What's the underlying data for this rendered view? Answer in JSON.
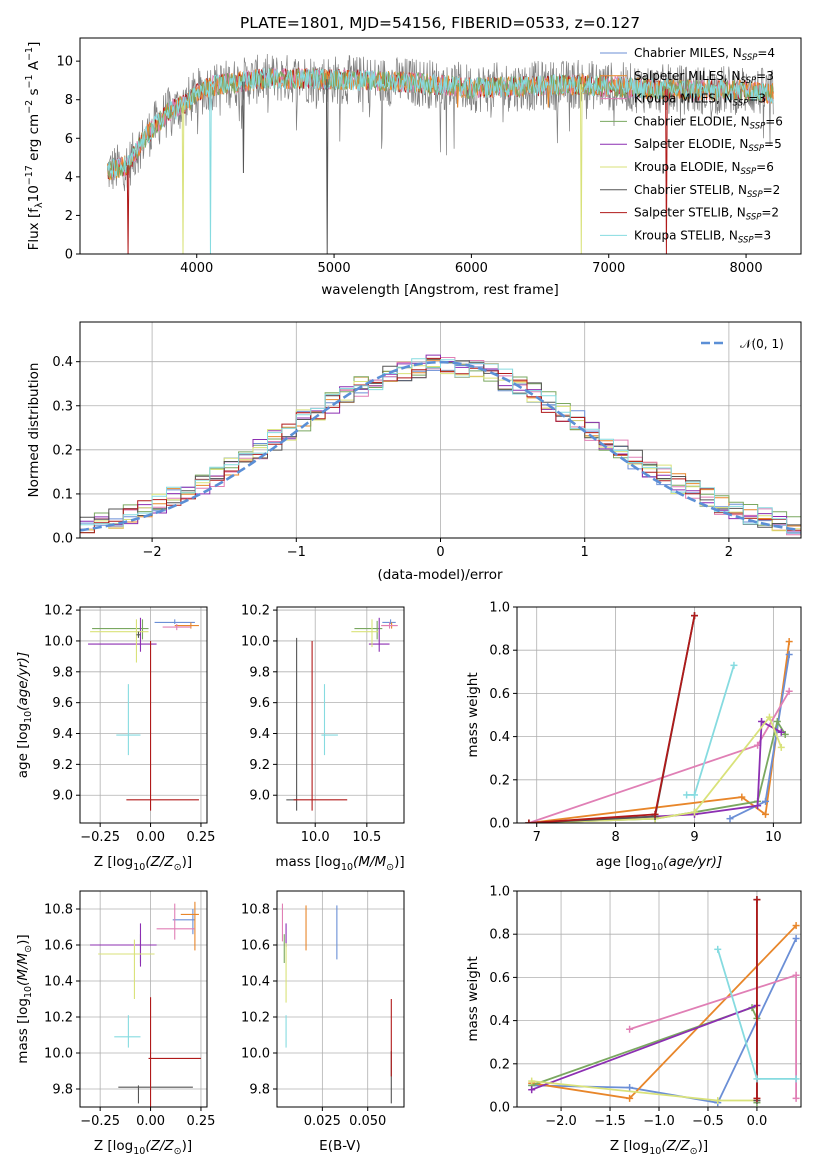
{
  "colors": {
    "Chabrier MILES": "#6b8fd6",
    "Salpeter MILES": "#e8862a",
    "Kroupa MILES": "#e07fb5",
    "Chabrier ELODIE": "#7aa860",
    "Salpeter ELODIE": "#8c2fb2",
    "Kroupa ELODIE": "#d9e27a",
    "Chabrier STELIB": "#555555",
    "Salpeter STELIB": "#b01a1a",
    "Kroupa STELIB": "#86dbe0"
  },
  "chart_data": [
    {
      "id": "spectrum",
      "type": "line",
      "title": "PLATE=1801, MJD=54156, FIBERID=0533, z=0.127",
      "xlabel": "wavelength [Angstrom, rest frame]",
      "ylabel_parts": [
        "Flux [f",
        "λ",
        "10",
        "−17",
        " erg cm",
        "−2",
        " s",
        "−1",
        " A",
        "−1",
        "]"
      ],
      "xlim": [
        3150,
        8400
      ],
      "ylim": [
        0,
        11.2
      ],
      "xticks": [
        4000,
        5000,
        6000,
        7000,
        8000
      ],
      "yticks": [
        0,
        2,
        4,
        6,
        8,
        10
      ],
      "legend_loc": "right",
      "legend": [
        {
          "name": "Chabrier MILES, N",
          "sub": "SSP",
          "post": "=4",
          "color": "#6b8fd6"
        },
        {
          "name": "Salpeter MILES, N",
          "sub": "SSP",
          "post": "=3",
          "color": "#e8862a"
        },
        {
          "name": "Kroupa MILES, N",
          "sub": "SSP",
          "post": "=3",
          "color": "#e07fb5"
        },
        {
          "name": "Chabrier ELODIE, N",
          "sub": "SSP",
          "post": "=6",
          "color": "#7aa860"
        },
        {
          "name": "Salpeter ELODIE, N",
          "sub": "SSP",
          "post": "=5",
          "color": "#8c2fb2"
        },
        {
          "name": "Kroupa ELODIE, N",
          "sub": "SSP",
          "post": "=6",
          "color": "#d9e27a"
        },
        {
          "name": "Chabrier STELIB, N",
          "sub": "SSP",
          "post": "=2",
          "color": "#555555"
        },
        {
          "name": "Salpeter STELIB, N",
          "sub": "SSP",
          "post": "=2",
          "color": "#b01a1a"
        },
        {
          "name": "Kroupa STELIB, N",
          "sub": "SSP",
          "post": "=3",
          "color": "#86dbe0"
        }
      ],
      "continuum_x": [
        3350,
        3500,
        3600,
        3700,
        3800,
        3900,
        4000,
        4100,
        4300,
        4500,
        4800,
        5200,
        5600,
        6000,
        6400,
        6800,
        7200,
        7600,
        8000,
        8200
      ],
      "continuum_y": [
        4.3,
        4.6,
        5.8,
        6.7,
        7.4,
        7.7,
        8.3,
        8.7,
        8.9,
        9.1,
        9.1,
        9.0,
        8.9,
        8.6,
        8.7,
        8.8,
        8.6,
        8.5,
        8.5,
        8.3
      ],
      "dips": [
        {
          "x": 3500,
          "y": 0,
          "color": "#b01a1a"
        },
        {
          "x": 3900,
          "y": 0,
          "color": "#d9e27a"
        },
        {
          "x": 4100,
          "y": 0,
          "color": "#86dbe0"
        },
        {
          "x": 4340,
          "y": 4.2,
          "color": "#555555"
        },
        {
          "x": 4950,
          "y": 0,
          "color": "#555555"
        },
        {
          "x": 5900,
          "y": 7.6,
          "color": "#e8862a"
        },
        {
          "x": 6560,
          "y": 7.6,
          "color": "#e8862a"
        },
        {
          "x": 6800,
          "y": 0,
          "color": "#d9e27a"
        },
        {
          "x": 7420,
          "y": 0,
          "color": "#b01a1a"
        }
      ]
    },
    {
      "id": "residuals",
      "type": "line",
      "xlabel": "(data-model)/error",
      "ylabel": "Normed distribution",
      "xlim": [
        -2.5,
        2.5
      ],
      "ylim": [
        0,
        0.49
      ],
      "xticks": [
        -2,
        -1,
        0,
        1,
        2
      ],
      "yticks": [
        0.0,
        0.1,
        0.2,
        0.3,
        0.4
      ],
      "legend_loc": "upper right",
      "legend": {
        "label": "𝒩(0, 1)",
        "color": "#5b8fd6"
      },
      "bin_width": 0.1
    },
    {
      "id": "age_vs_Z",
      "type": "scatter",
      "xlabel_parts": [
        "Z [log",
        "10",
        "(Z/Z",
        "⊙",
        ")]"
      ],
      "ylabel_parts": [
        "age  [log",
        "10",
        "(age/yr)]"
      ],
      "xlim": [
        -0.35,
        0.28
      ],
      "ylim": [
        8.82,
        10.22
      ],
      "xticks": [
        -0.25,
        0.0,
        0.25
      ],
      "yticks": [
        9.0,
        9.2,
        9.4,
        9.6,
        9.8,
        10.0,
        10.2
      ],
      "points": [
        {
          "x": 0.12,
          "y": 10.12,
          "xerr": [
            0.1,
            0.1
          ],
          "yerr": [
            0.01,
            0.02
          ],
          "color": "#6b8fd6"
        },
        {
          "x": 0.2,
          "y": 10.1,
          "xerr": [
            0.08,
            0.04
          ],
          "yerr": [
            0.02,
            0.02
          ],
          "color": "#e8862a"
        },
        {
          "x": 0.13,
          "y": 10.09,
          "xerr": [
            0.07,
            0.07
          ],
          "yerr": [
            0.02,
            0.02
          ],
          "color": "#e07fb5"
        },
        {
          "x": -0.04,
          "y": 10.08,
          "xerr": [
            0.25,
            0.03
          ],
          "yerr": [
            0.07,
            0.06
          ],
          "color": "#7aa860"
        },
        {
          "x": -0.05,
          "y": 9.98,
          "xerr": [
            0.26,
            0.08
          ],
          "yerr": [
            0.05,
            0.17
          ],
          "color": "#8c2fb2"
        },
        {
          "x": -0.07,
          "y": 10.06,
          "xerr": [
            0.23,
            0.06
          ],
          "yerr": [
            0.2,
            0.08
          ],
          "color": "#d9e27a"
        },
        {
          "x": -0.06,
          "y": 10.04,
          "xerr": [
            0.01,
            0.01
          ],
          "yerr": [
            0.02,
            0.02
          ],
          "color": "#555555"
        },
        {
          "x": -0.11,
          "y": 9.39,
          "xerr": [
            0.06,
            0.06
          ],
          "yerr": [
            0.13,
            0.33
          ],
          "color": "#86dbe0"
        },
        {
          "x": 0.0,
          "y": 8.97,
          "xerr": [
            0.12,
            0.24
          ],
          "yerr": [
            0.07,
            1.03
          ],
          "color": "#b01a1a"
        }
      ]
    },
    {
      "id": "age_vs_mass",
      "type": "scatter",
      "xlabel_parts": [
        "mass [log",
        "10",
        "(M/M",
        "⊙",
        ")]"
      ],
      "xlim": [
        9.63,
        10.86
      ],
      "ylim": [
        8.82,
        10.22
      ],
      "xticks": [
        10.0,
        10.5
      ],
      "yticks": [
        9.0,
        9.2,
        9.4,
        9.6,
        9.8,
        10.0,
        10.2
      ],
      "points": [
        {
          "x": 10.73,
          "y": 10.12,
          "xerr": [
            0.08,
            0.05
          ],
          "yerr": [
            0.01,
            0.02
          ],
          "color": "#6b8fd6"
        },
        {
          "x": 10.74,
          "y": 10.1,
          "xerr": [
            0.1,
            0.05
          ],
          "yerr": [
            0.02,
            0.02
          ],
          "color": "#e8862a"
        },
        {
          "x": 10.72,
          "y": 10.1,
          "xerr": [
            0.08,
            0.08
          ],
          "yerr": [
            0.02,
            0.02
          ],
          "color": "#e07fb5"
        },
        {
          "x": 10.6,
          "y": 10.08,
          "xerr": [
            0.22,
            0.05
          ],
          "yerr": [
            0.07,
            0.05
          ],
          "color": "#7aa860"
        },
        {
          "x": 10.62,
          "y": 9.98,
          "xerr": [
            0.1,
            0.1
          ],
          "yerr": [
            0.05,
            0.17
          ],
          "color": "#8c2fb2"
        },
        {
          "x": 10.55,
          "y": 10.06,
          "xerr": [
            0.2,
            0.06
          ],
          "yerr": [
            0.1,
            0.08
          ],
          "color": "#d9e27a"
        },
        {
          "x": 9.82,
          "y": 8.97,
          "xerr": [
            0.1,
            0.0
          ],
          "yerr": [
            0.07,
            1.05
          ],
          "color": "#555555"
        },
        {
          "x": 10.09,
          "y": 9.39,
          "xerr": [
            0.03,
            0.13
          ],
          "yerr": [
            0.13,
            0.33
          ],
          "color": "#86dbe0"
        },
        {
          "x": 9.97,
          "y": 8.97,
          "xerr": [
            0.18,
            0.34
          ],
          "yerr": [
            0.07,
            1.03
          ],
          "color": "#b01a1a"
        }
      ]
    },
    {
      "id": "weight_vs_age",
      "type": "line",
      "xlabel_parts": [
        "age  [log",
        "10",
        "(age/yr)]"
      ],
      "ylabel": "mass weight",
      "xlim": [
        6.75,
        10.35
      ],
      "ylim": [
        0,
        1.0
      ],
      "xticks": [
        7,
        8,
        9,
        10
      ],
      "yticks": [
        0.0,
        0.2,
        0.4,
        0.6,
        0.8,
        1.0
      ],
      "series": [
        {
          "color": "#e8862a",
          "x": [
            6.9,
            9.6,
            9.9,
            10.2
          ],
          "y": [
            0.0,
            0.12,
            0.04,
            0.84
          ]
        },
        {
          "color": "#6b8fd6",
          "x": [
            9.45,
            9.9,
            10.2
          ],
          "y": [
            0.02,
            0.1,
            0.78
          ]
        },
        {
          "color": "#e07fb5",
          "x": [
            6.9,
            9.8,
            10.2
          ],
          "y": [
            0.0,
            0.36,
            0.61
          ]
        },
        {
          "color": "#7aa860",
          "x": [
            6.9,
            8.5,
            9.0,
            9.8,
            10.05,
            10.15
          ],
          "y": [
            0.0,
            0.02,
            0.05,
            0.1,
            0.47,
            0.41
          ]
        },
        {
          "color": "#8c2fb2",
          "x": [
            6.9,
            8.5,
            9.0,
            9.8,
            9.85,
            10.1
          ],
          "y": [
            0.0,
            0.03,
            0.04,
            0.08,
            0.47,
            0.42
          ]
        },
        {
          "color": "#d9e27a",
          "x": [
            6.9,
            8.5,
            9.0,
            9.95,
            10.1
          ],
          "y": [
            0.0,
            0.02,
            0.05,
            0.49,
            0.35
          ]
        },
        {
          "color": "#555555",
          "x": [
            6.9,
            8.5,
            9.0
          ],
          "y": [
            0.0,
            0.03,
            0.96
          ]
        },
        {
          "color": "#b01a1a",
          "x": [
            6.9,
            8.5,
            9.0
          ],
          "y": [
            0.0,
            0.04,
            0.96
          ]
        },
        {
          "color": "#86dbe0",
          "x": [
            8.9,
            9.0,
            9.5
          ],
          "y": [
            0.13,
            0.13,
            0.73
          ]
        }
      ]
    },
    {
      "id": "mass_vs_Z",
      "type": "scatter",
      "xlabel_parts": [
        "Z [log",
        "10",
        "(Z/Z",
        "⊙",
        ")]"
      ],
      "ylabel_parts": [
        "mass [log",
        "10",
        "(M/M",
        "⊙",
        ")]"
      ],
      "xlim": [
        -0.35,
        0.28
      ],
      "ylim": [
        9.7,
        10.9
      ],
      "xticks": [
        -0.25,
        0.0,
        0.25
      ],
      "yticks": [
        9.8,
        10.0,
        10.2,
        10.4,
        10.6,
        10.8
      ],
      "points": [
        {
          "x": 0.21,
          "y": 10.74,
          "xerr": [
            0.1,
            0.01
          ],
          "yerr": [
            0.08,
            0.06
          ],
          "color": "#6b8fd6"
        },
        {
          "x": 0.22,
          "y": 10.77,
          "xerr": [
            0.07,
            0.02
          ],
          "yerr": [
            0.2,
            0.07
          ],
          "color": "#e8862a"
        },
        {
          "x": 0.12,
          "y": 10.69,
          "xerr": [
            0.09,
            0.1
          ],
          "yerr": [
            0.06,
            0.14
          ],
          "color": "#e07fb5"
        },
        {
          "x": -0.05,
          "y": 10.6,
          "xerr": [
            0.25,
            0.05
          ],
          "yerr": [
            0.1,
            0.06
          ],
          "color": "#7aa860"
        },
        {
          "x": -0.05,
          "y": 10.6,
          "xerr": [
            0.25,
            0.08
          ],
          "yerr": [
            0.12,
            0.12
          ],
          "color": "#8c2fb2"
        },
        {
          "x": -0.08,
          "y": 10.55,
          "xerr": [
            0.18,
            0.1
          ],
          "yerr": [
            0.25,
            0.08
          ],
          "color": "#d9e27a"
        },
        {
          "x": -0.06,
          "y": 9.81,
          "xerr": [
            0.1,
            0.27
          ],
          "yerr": [
            0.09,
            0.01
          ],
          "color": "#555555"
        },
        {
          "x": -0.11,
          "y": 10.09,
          "xerr": [
            0.07,
            0.06
          ],
          "yerr": [
            0.06,
            0.12
          ],
          "color": "#86dbe0"
        },
        {
          "x": 0.0,
          "y": 9.97,
          "xerr": [
            0.01,
            0.25
          ],
          "yerr": [
            0.27,
            0.34
          ],
          "color": "#b01a1a"
        }
      ]
    },
    {
      "id": "mass_vs_EBV",
      "type": "scatter",
      "xlabel": "E(B-V)",
      "xlim": [
        0.0,
        0.07
      ],
      "ylim": [
        9.7,
        10.9
      ],
      "xticks": [
        0.025,
        0.05
      ],
      "yticks": [
        9.8,
        10.0,
        10.2,
        10.4,
        10.6,
        10.8
      ],
      "points": [
        {
          "x": 0.033,
          "y": 10.74,
          "yerr": [
            0.22,
            0.08
          ],
          "color": "#6b8fd6"
        },
        {
          "x": 0.016,
          "y": 10.77,
          "yerr": [
            0.2,
            0.05
          ],
          "color": "#e8862a"
        },
        {
          "x": 0.003,
          "y": 10.68,
          "yerr": [
            0.06,
            0.15
          ],
          "color": "#e07fb5"
        },
        {
          "x": 0.004,
          "y": 10.6,
          "yerr": [
            0.1,
            0.06
          ],
          "color": "#7aa860"
        },
        {
          "x": 0.005,
          "y": 10.65,
          "yerr": [
            0.06,
            0.07
          ],
          "color": "#8c2fb2"
        },
        {
          "x": 0.005,
          "y": 10.55,
          "yerr": [
            0.27,
            0.06
          ],
          "color": "#d9e27a"
        },
        {
          "x": 0.063,
          "y": 9.81,
          "yerr": [
            0.09,
            0.2
          ],
          "color": "#555555"
        },
        {
          "x": 0.005,
          "y": 10.09,
          "yerr": [
            0.06,
            0.12
          ],
          "color": "#86dbe0"
        },
        {
          "x": 0.063,
          "y": 9.97,
          "yerr": [
            0.1,
            0.33
          ],
          "color": "#b01a1a"
        }
      ]
    },
    {
      "id": "weight_vs_Z",
      "type": "line",
      "xlabel_parts": [
        "Z [log",
        "10",
        "(Z/Z",
        "⊙",
        ")]"
      ],
      "ylabel": "mass weight",
      "xlim": [
        -2.45,
        0.45
      ],
      "ylim": [
        0,
        1.0
      ],
      "xticks": [
        -2.0,
        -1.5,
        -1.0,
        -0.5,
        0.0
      ],
      "yticks": [
        0.0,
        0.2,
        0.4,
        0.6,
        0.8,
        1.0
      ],
      "series": [
        {
          "color": "#6b8fd6",
          "x": [
            -2.3,
            -1.3,
            -0.4,
            0.4
          ],
          "y": [
            0.1,
            0.09,
            0.02,
            0.78
          ]
        },
        {
          "color": "#e8862a",
          "x": [
            -2.3,
            -1.3,
            0.4
          ],
          "y": [
            0.11,
            0.04,
            0.84
          ]
        },
        {
          "color": "#e07fb5",
          "x": [
            -1.3,
            0.4,
            0.4
          ],
          "y": [
            0.36,
            0.61,
            0.04
          ]
        },
        {
          "color": "#7aa860",
          "x": [
            -2.3,
            -0.05,
            0.0,
            0.0
          ],
          "y": [
            0.1,
            0.46,
            0.41,
            0.02
          ]
        },
        {
          "color": "#8c2fb2",
          "x": [
            -2.3,
            0.0,
            0.0
          ],
          "y": [
            0.08,
            0.47,
            0.03
          ]
        },
        {
          "color": "#d9e27a",
          "x": [
            -2.3,
            -0.4,
            0.0
          ],
          "y": [
            0.12,
            0.03,
            0.03
          ]
        },
        {
          "color": "#555555",
          "x": [
            0.0,
            0.0
          ],
          "y": [
            0.03,
            0.96
          ]
        },
        {
          "color": "#b01a1a",
          "x": [
            0.0,
            0.0
          ],
          "y": [
            0.04,
            0.96
          ]
        },
        {
          "color": "#86dbe0",
          "x": [
            -0.4,
            0.0,
            0.4
          ],
          "y": [
            0.73,
            0.13,
            0.13
          ]
        }
      ]
    }
  ]
}
